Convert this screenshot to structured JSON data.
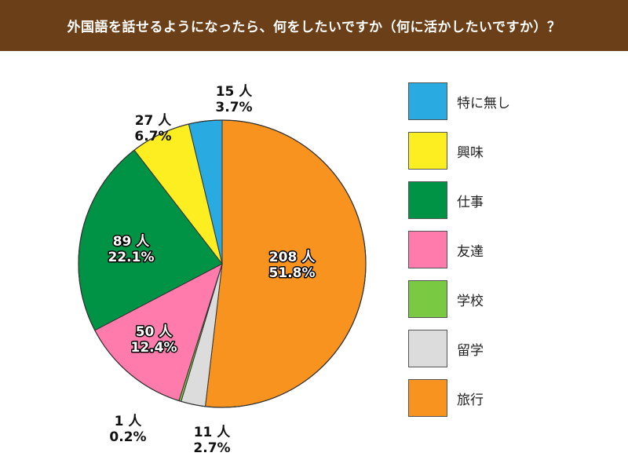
{
  "chart_data": {
    "type": "pie",
    "title": "外国語を話せるようになったら、何をしたいですか（何に活かしたいですか）？",
    "slices": [
      {
        "name": "旅行",
        "count": 208,
        "percent": 51.8,
        "count_label": "208 人",
        "percent_label": "51.8%",
        "color": "#f7931e"
      },
      {
        "name": "留学",
        "count": 11,
        "percent": 2.7,
        "count_label": "11 人",
        "percent_label": "2.7%",
        "color": "#dcdcdc"
      },
      {
        "name": "学校",
        "count": 1,
        "percent": 0.2,
        "count_label": "1 人",
        "percent_label": "0.2%",
        "color": "#7ac943"
      },
      {
        "name": "友達",
        "count": 50,
        "percent": 12.4,
        "count_label": "50 人",
        "percent_label": "12.4%",
        "color": "#ff7bac"
      },
      {
        "name": "仕事",
        "count": 89,
        "percent": 22.1,
        "count_label": "89 人",
        "percent_label": "22.1%",
        "color": "#009245"
      },
      {
        "name": "興味",
        "count": 27,
        "percent": 6.7,
        "count_label": "27 人",
        "percent_label": "6.7%",
        "color": "#fcee21"
      },
      {
        "name": "特に無し",
        "count": 15,
        "percent": 3.7,
        "count_label": "15 人",
        "percent_label": "3.7%",
        "color": "#29abe2"
      }
    ],
    "legend_order": [
      "特に無し",
      "興味",
      "仕事",
      "友達",
      "学校",
      "留学",
      "旅行"
    ],
    "legend_position": "right"
  }
}
